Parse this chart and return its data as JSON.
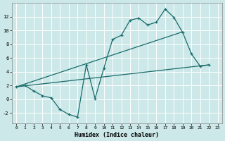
{
  "xlabel": "Humidex (Indice chaleur)",
  "background_color": "#cce8e8",
  "grid_color": "#ffffff",
  "line_color": "#1a6b6b",
  "xlim": [
    -0.5,
    23.5
  ],
  "ylim": [
    -3.5,
    14.0
  ],
  "xticks": [
    0,
    1,
    2,
    3,
    4,
    5,
    6,
    7,
    8,
    9,
    10,
    11,
    12,
    13,
    14,
    15,
    16,
    17,
    18,
    19,
    20,
    21,
    22,
    23
  ],
  "yticks": [
    -2,
    0,
    2,
    4,
    6,
    8,
    10,
    12
  ],
  "line1_x": [
    0,
    1,
    2,
    3,
    4,
    5,
    6,
    7,
    8,
    9,
    10,
    11,
    12,
    13,
    14,
    15,
    16,
    17,
    18,
    19,
    20,
    21,
    22
  ],
  "line1_y": [
    1.8,
    2.0,
    1.2,
    0.5,
    0.2,
    -1.5,
    -2.2,
    -2.6,
    5.0,
    0.1,
    4.5,
    8.7,
    9.3,
    11.5,
    11.8,
    10.8,
    11.2,
    13.1,
    11.9,
    9.7,
    6.6,
    4.8,
    5.0
  ],
  "line2_x": [
    0,
    22
  ],
  "line2_y": [
    1.8,
    5.0
  ],
  "line3_x": [
    0,
    19
  ],
  "line3_y": [
    1.8,
    9.8
  ]
}
